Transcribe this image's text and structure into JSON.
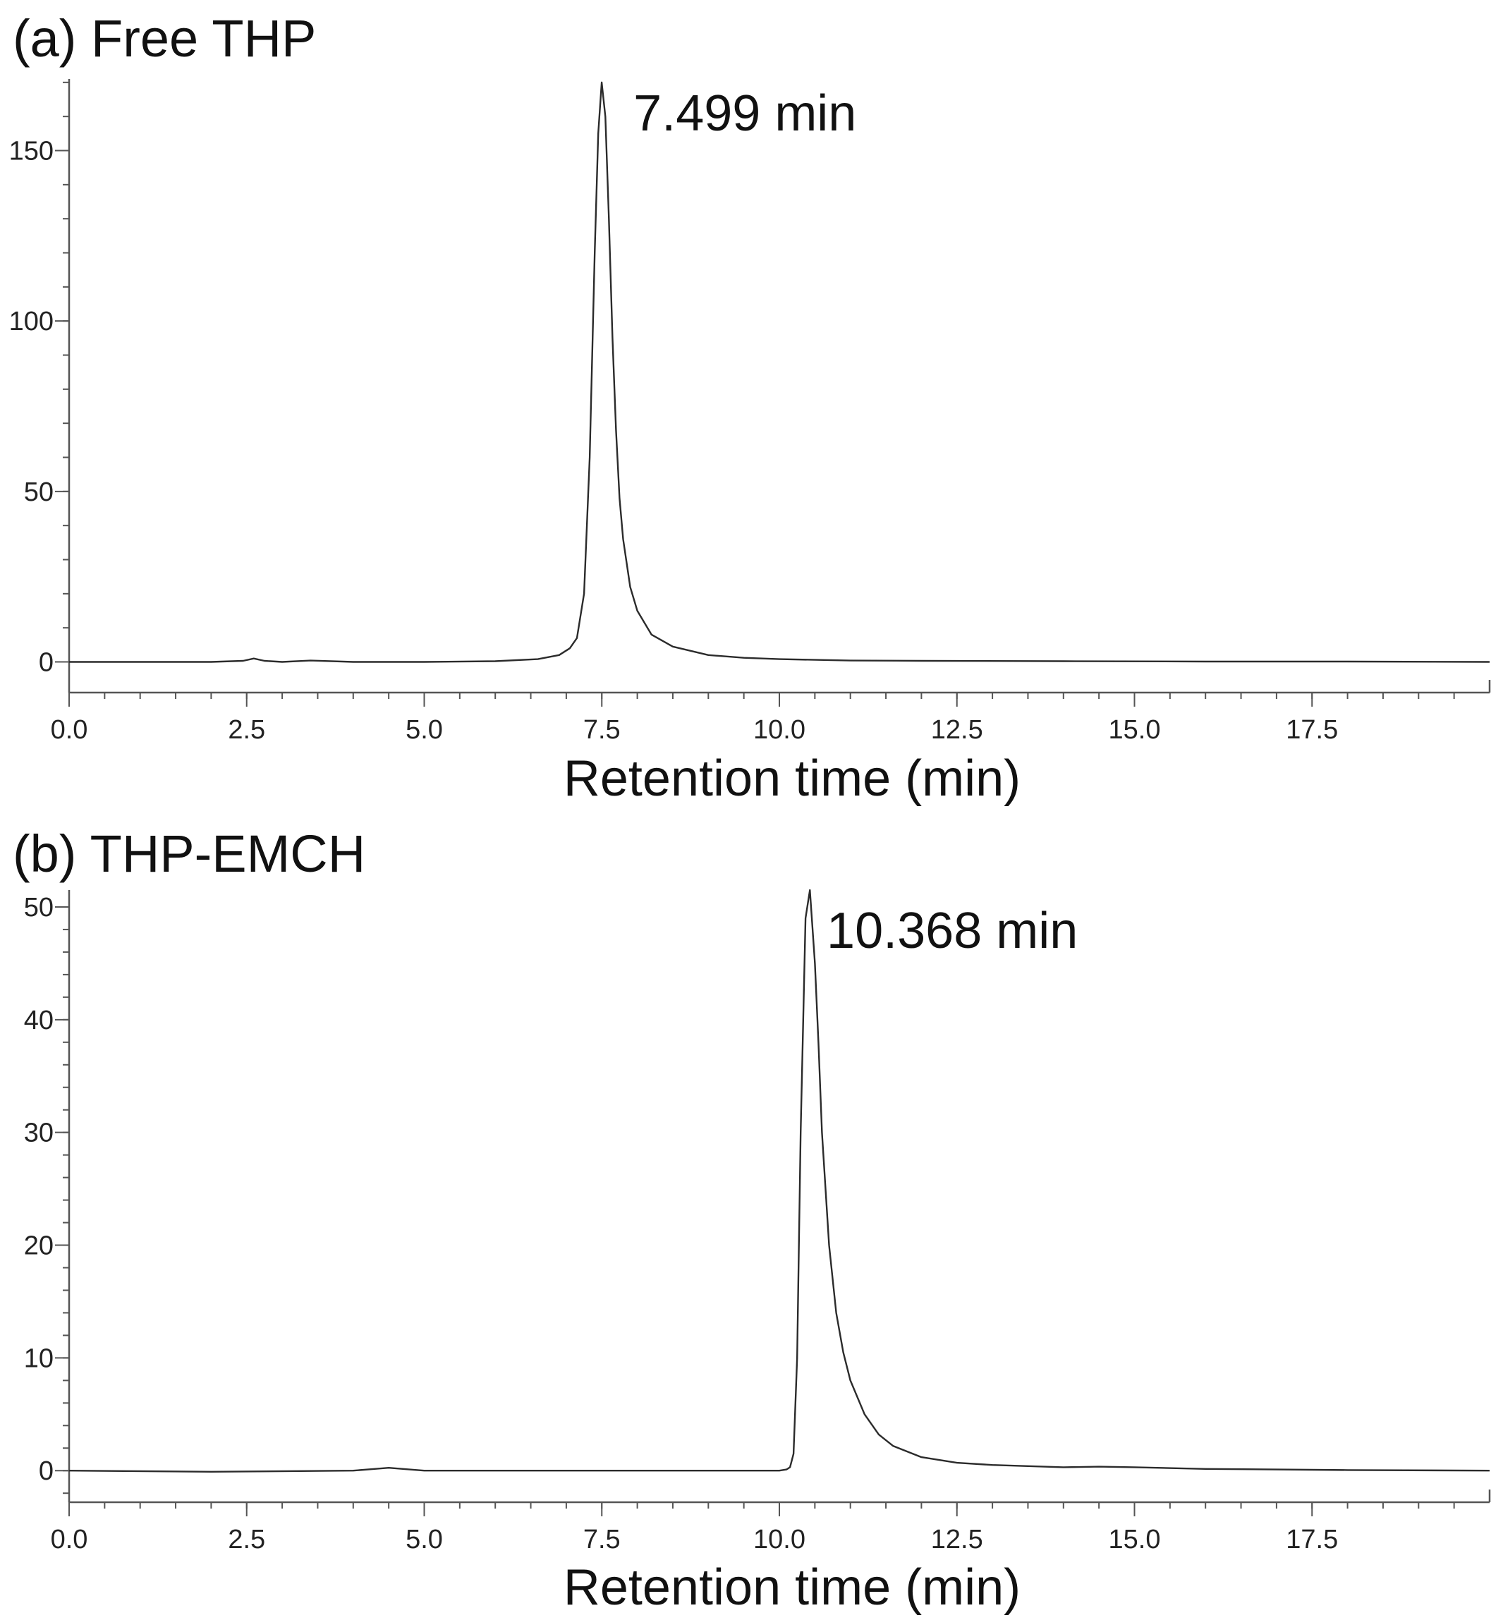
{
  "chart_data": [
    {
      "type": "line",
      "title": "(a) Free THP",
      "xlabel": "Retention time (min)",
      "ylabel": "",
      "xlim": [
        0,
        20
      ],
      "ylim": [
        -9,
        171
      ],
      "x_ticks": [
        0.0,
        2.5,
        5.0,
        7.5,
        10.0,
        12.5,
        15.0,
        17.5
      ],
      "x_tick_labels": [
        "0.0",
        "2.5",
        "5.0",
        "7.5",
        "10.0",
        "12.5",
        "15.0",
        "17.5"
      ],
      "y_ticks": [
        0,
        50,
        100,
        150
      ],
      "y_tick_labels": [
        "0",
        "50",
        "100",
        "150"
      ],
      "grid": false,
      "annotations": [
        {
          "text": "7.499 min",
          "x": 7.499,
          "y": 170
        }
      ],
      "series": [
        {
          "x": [
            0,
            1.0,
            2.0,
            2.45,
            2.6,
            2.75,
            3.0,
            3.4,
            4.0,
            5.0,
            6.0,
            6.6,
            6.9,
            7.05,
            7.15,
            7.25,
            7.33,
            7.4,
            7.45,
            7.499,
            7.55,
            7.6,
            7.65,
            7.7,
            7.75,
            7.8,
            7.9,
            8.0,
            8.2,
            8.5,
            9.0,
            9.5,
            10.0,
            11.0,
            12.0,
            14.0,
            16.0,
            18.0,
            20.0
          ],
          "y": [
            0,
            0,
            0,
            0.3,
            1.0,
            0.3,
            0,
            0.4,
            0,
            0,
            0.2,
            0.8,
            2.0,
            4.0,
            7.0,
            20.0,
            60.0,
            120.0,
            155.0,
            170.0,
            160.0,
            130.0,
            95.0,
            68.0,
            48.0,
            36.0,
            22.0,
            15.0,
            8.0,
            4.5,
            2.0,
            1.2,
            0.8,
            0.4,
            0.3,
            0.2,
            0.1,
            0.1,
            0
          ]
        }
      ]
    },
    {
      "type": "line",
      "title": "(b) THP-EMCH",
      "xlabel": "Retention time (min)",
      "ylabel": "",
      "xlim": [
        0,
        20
      ],
      "ylim": [
        -2.8,
        51.5
      ],
      "x_ticks": [
        0.0,
        2.5,
        5.0,
        7.5,
        10.0,
        12.5,
        15.0,
        17.5
      ],
      "x_tick_labels": [
        "0.0",
        "2.5",
        "5.0",
        "7.5",
        "10.0",
        "12.5",
        "15.0",
        "17.5"
      ],
      "y_ticks": [
        0,
        10,
        20,
        30,
        40,
        50
      ],
      "y_tick_labels": [
        "0",
        "10",
        "20",
        "30",
        "40",
        "50"
      ],
      "grid": false,
      "annotations": [
        {
          "text": "10.368 min",
          "x": 10.368,
          "y": 51.5
        }
      ],
      "series": [
        {
          "x": [
            0,
            2.0,
            4.0,
            4.3,
            4.5,
            4.7,
            5.0,
            7.0,
            9.0,
            10.0,
            10.1,
            10.15,
            10.2,
            10.25,
            10.3,
            10.368,
            10.43,
            10.5,
            10.55,
            10.6,
            10.7,
            10.8,
            10.9,
            11.0,
            11.2,
            11.4,
            11.6,
            12.0,
            12.5,
            13.0,
            14.0,
            14.5,
            15.0,
            16.0,
            18.0,
            20.0
          ],
          "y": [
            0,
            -0.1,
            0,
            0.15,
            0.25,
            0.15,
            0,
            0,
            0,
            0,
            0.1,
            0.3,
            1.5,
            10.0,
            30.0,
            49.0,
            51.5,
            45.0,
            38.0,
            30.0,
            20.0,
            14.0,
            10.5,
            8.0,
            5.0,
            3.2,
            2.2,
            1.2,
            0.7,
            0.5,
            0.3,
            0.35,
            0.3,
            0.15,
            0.05,
            0
          ]
        }
      ]
    }
  ]
}
